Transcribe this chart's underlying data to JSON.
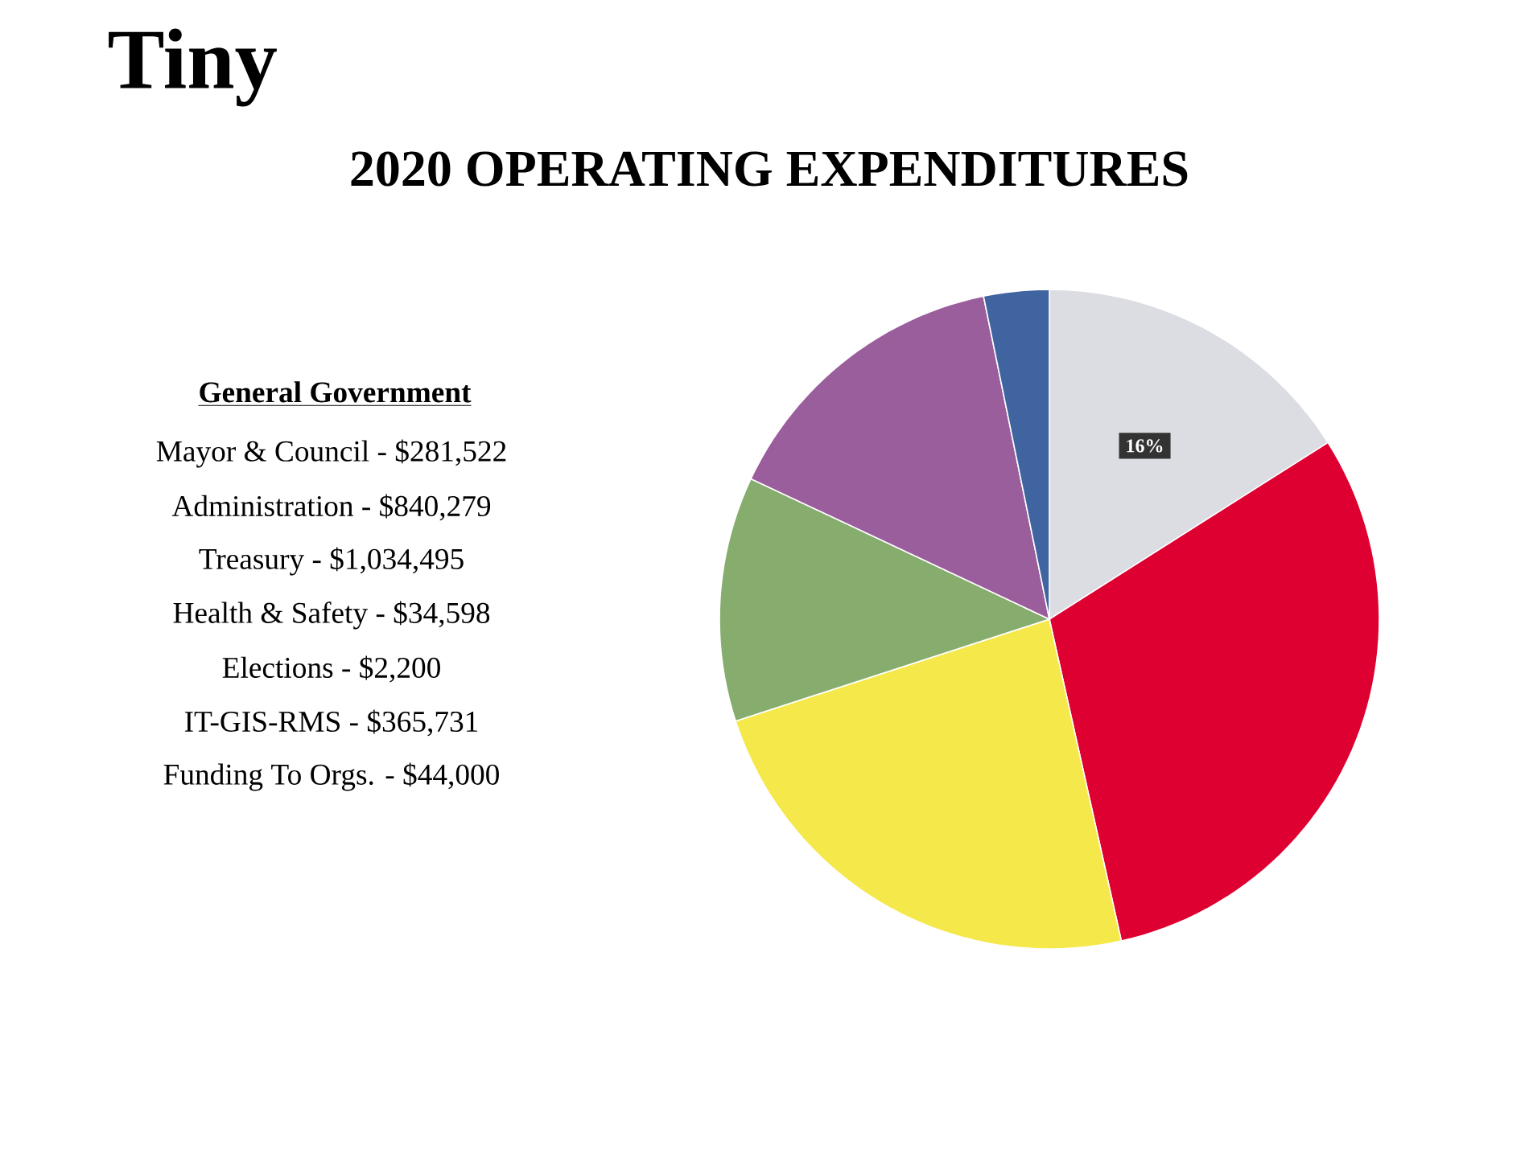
{
  "chart_data": {
    "type": "pie",
    "title": "2020 OPERATING EXPENDITURES",
    "categories": [
      null,
      null,
      null,
      null,
      null,
      null
    ],
    "values": [
      16,
      30.5,
      23.5,
      12,
      14.8,
      3.2
    ],
    "colors": [
      "#dcdde3",
      "#de0030",
      "#f5e84a",
      "#86ad6e",
      "#9a5e9c",
      "#3f64a0"
    ],
    "value_labels": [
      "16%",
      null,
      null,
      null,
      null,
      null
    ],
    "annotations": [
      "Tiny",
      "General Government",
      "Mayor & Council - $281,522",
      "Administration - $840,279",
      "Treasury - $1,034,495",
      "Health & Safety - $34,598",
      "Elections - $2,200",
      "IT-GIS-RMS - $365,731",
      "Funding To Orgs. - $44,000"
    ]
  }
}
